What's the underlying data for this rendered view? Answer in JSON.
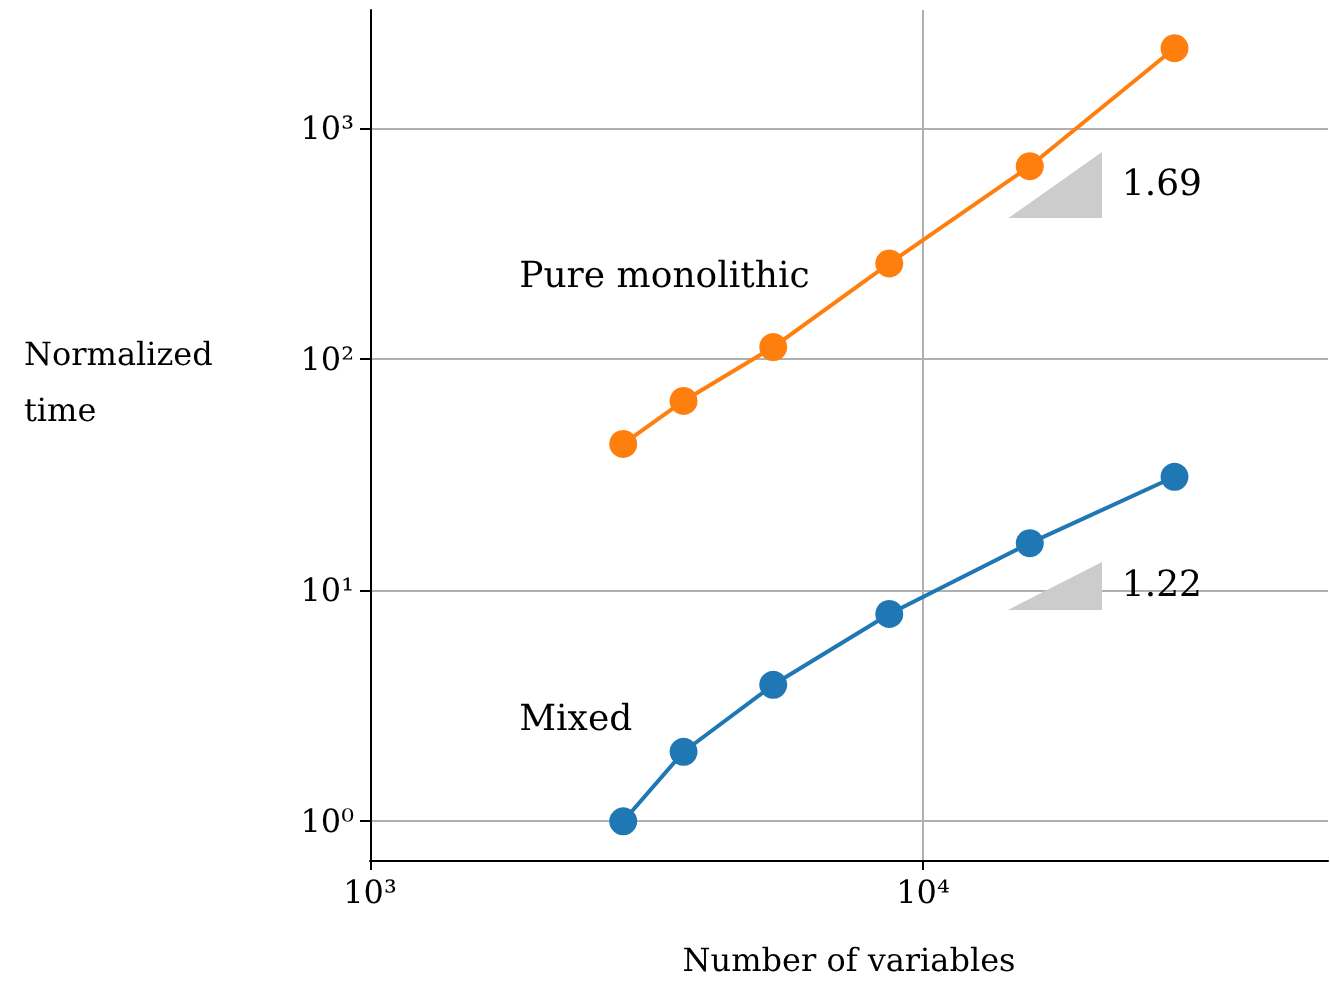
{
  "chart_data": {
    "type": "line",
    "xlabel": "Number of variables",
    "ylabel": "Normalized\ntime",
    "x": [
      2870,
      3690,
      5360,
      8690,
      15600,
      28500
    ],
    "series": [
      {
        "name": "Pure monolithic",
        "color": "#ff7f0e",
        "values": [
          43,
          66,
          113,
          260,
          685,
          2220
        ]
      },
      {
        "name": "Mixed",
        "color": "#1f77b4",
        "values": [
          1,
          2,
          3.9,
          7.9,
          16,
          31
        ]
      }
    ],
    "log": "xy",
    "xlim": [
      1000,
      54000
    ],
    "ylim": [
      0.68,
      3250
    ],
    "xticks": [
      {
        "value": 1000,
        "label": "10³"
      },
      {
        "value": 10000,
        "label": "10⁴"
      }
    ],
    "yticks": [
      {
        "value": 1,
        "label": "10⁰"
      },
      {
        "value": 10,
        "label": "10¹"
      },
      {
        "value": 100,
        "label": "10²"
      },
      {
        "value": 1000,
        "label": "10³"
      }
    ],
    "grid": true,
    "marker": "circle",
    "line_style": "solid",
    "legend": false,
    "annotations": [
      "1.69",
      "1.22"
    ]
  }
}
